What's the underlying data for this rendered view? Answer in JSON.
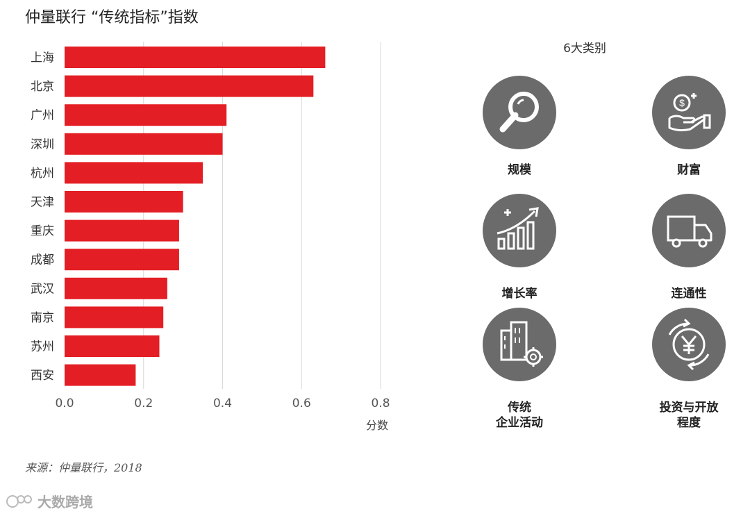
{
  "title": "仲量联行 “传统指标”指数",
  "chart_data": {
    "type": "bar",
    "orientation": "horizontal",
    "categories": [
      "上海",
      "北京",
      "广州",
      "深圳",
      "杭州",
      "天津",
      "重庆",
      "成都",
      "武汉",
      "南京",
      "苏州",
      "西安"
    ],
    "values": [
      0.66,
      0.63,
      0.41,
      0.4,
      0.35,
      0.3,
      0.29,
      0.29,
      0.26,
      0.25,
      0.24,
      0.18
    ],
    "xlim": [
      0,
      0.8
    ],
    "xticks": [
      "0.0",
      "0.2",
      "0.4",
      "0.6",
      "0.8"
    ],
    "xlabel": "分数",
    "bar_color": "#e31e24",
    "grid_color": "#d9d9d9"
  },
  "categories_panel": {
    "heading": "6大类别",
    "items": [
      {
        "label": "规模",
        "icon": "magnifier-icon"
      },
      {
        "label": "财富",
        "icon": "hand-money-icon"
      },
      {
        "label": "增长率",
        "icon": "growth-bars-icon"
      },
      {
        "label": "连通性",
        "icon": "truck-icon"
      },
      {
        "label": "传统\n企业活动",
        "label_line1": "传统",
        "label_line2": "企业活动",
        "icon": "building-gear-icon"
      },
      {
        "label": "投资与开放\n程度",
        "label_line1": "投资与开放",
        "label_line2": "程度",
        "icon": "yuan-cycle-icon"
      }
    ],
    "icon_bg": "#6b6b6b"
  },
  "source": "来源：仲量联行，2018",
  "watermark": "大数跨境"
}
